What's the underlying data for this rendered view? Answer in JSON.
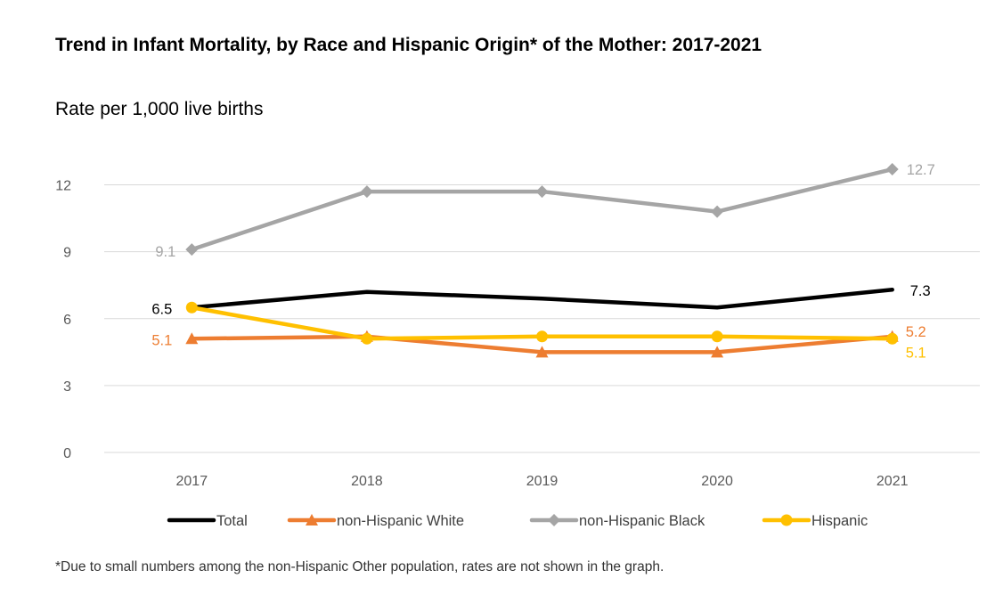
{
  "title": "Trend in Infant Mortality, by Race and Hispanic Origin* of the Mother: 2017-2021",
  "subtitle": "Rate per 1,000 live births",
  "footnote": "*Due to small numbers among the non-Hispanic Other population, rates are not shown in the graph.",
  "chart_data": {
    "type": "line",
    "title": "Trend in Infant Mortality, by Race and Hispanic Origin* of the Mother: 2017-2021",
    "subtitle": "Rate per 1,000 live births",
    "xlabel": "",
    "ylabel": "",
    "categories": [
      "2017",
      "2018",
      "2019",
      "2020",
      "2021"
    ],
    "ylim": [
      0,
      13.5
    ],
    "yticks": [
      0,
      3,
      6,
      9,
      12
    ],
    "grid": true,
    "legend_position": "bottom",
    "series": [
      {
        "name": "Total",
        "values": [
          6.5,
          7.2,
          6.9,
          6.5,
          7.3
        ],
        "color": "#000000",
        "marker": "none",
        "labels": [
          {
            "index": 0,
            "text": "6.5"
          },
          {
            "index": 4,
            "text": "7.3"
          }
        ]
      },
      {
        "name": "non-Hispanic White",
        "values": [
          5.1,
          5.2,
          4.5,
          4.5,
          5.2
        ],
        "color": "#ED7D31",
        "marker": "triangle",
        "labels": [
          {
            "index": 0,
            "text": "5.1"
          },
          {
            "index": 4,
            "text": "5.2"
          }
        ]
      },
      {
        "name": "non-Hispanic Black",
        "values": [
          9.1,
          11.7,
          11.7,
          10.8,
          12.7
        ],
        "color": "#A5A5A5",
        "marker": "diamond",
        "labels": [
          {
            "index": 0,
            "text": "9.1"
          },
          {
            "index": 4,
            "text": "12.7"
          }
        ]
      },
      {
        "name": "Hispanic",
        "values": [
          6.5,
          5.1,
          5.2,
          5.2,
          5.1
        ],
        "color": "#FFC000",
        "marker": "circle",
        "labels": [
          {
            "index": 4,
            "text": "5.1"
          }
        ]
      }
    ]
  }
}
